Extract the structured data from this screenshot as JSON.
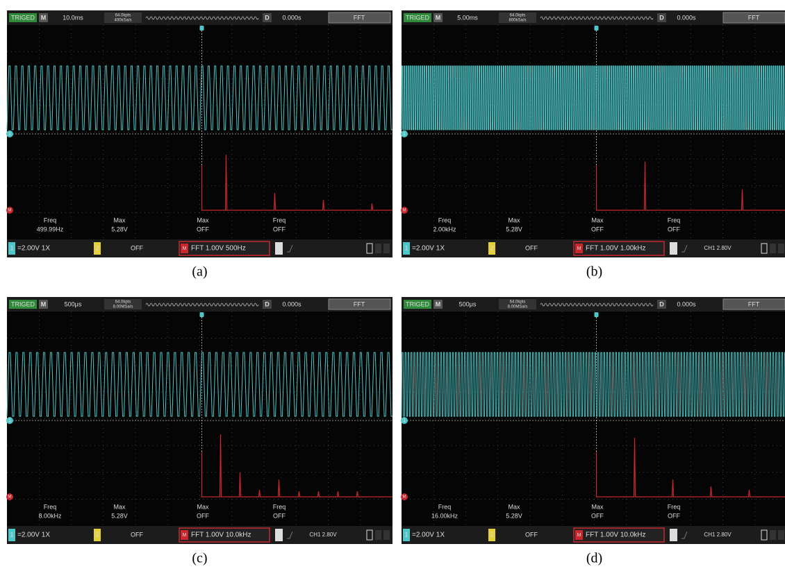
{
  "panels": [
    {
      "top": {
        "status": "TRIGED",
        "mode": "M",
        "timebase": "10.0ms",
        "depth": "64.0kpts",
        "rate": "400kSa/s",
        "delay_label": "D",
        "delay": "0.000s",
        "math": "FFT"
      },
      "markers": {
        "ch1": "1",
        "math": "M"
      },
      "measurements": [
        {
          "label": "Freq",
          "value": "499.99Hz"
        },
        {
          "label": "Max",
          "value": "5.28V"
        },
        {
          "label": "Max",
          "value": "OFF"
        },
        {
          "label": "Freq",
          "value": "OFF"
        }
      ],
      "bottom": {
        "ch1": "1",
        "ch1_setting": "=2.00V 1X",
        "ch2": "2",
        "ch2_setting": "OFF",
        "math": "M",
        "math_setting": "FFT 1.00V 500Hz",
        "trigger": "T"
      },
      "caption": "(a)"
    },
    {
      "top": {
        "status": "TRIGED",
        "mode": "M",
        "timebase": "5.00ms",
        "depth": "64.0kpts",
        "rate": "800kSa/s",
        "delay_label": "D",
        "delay": "0.000s",
        "math": "FFT"
      },
      "markers": {
        "ch1": "1",
        "math": "M"
      },
      "measurements": [
        {
          "label": "Freq",
          "value": "2.00kHz"
        },
        {
          "label": "Max",
          "value": "5.28V"
        },
        {
          "label": "Max",
          "value": "OFF"
        },
        {
          "label": "Freq",
          "value": "OFF"
        }
      ],
      "bottom": {
        "ch1": "1",
        "ch1_setting": "=2.00V 1X",
        "ch2": "2",
        "ch2_setting": "OFF",
        "math": "M",
        "math_setting": "FFT 1.00V 1.00kHz",
        "trigger": "T",
        "trigger_setting": "CH1 2.80V"
      },
      "caption": "(b)"
    },
    {
      "top": {
        "status": "TRIGED",
        "mode": "M",
        "timebase": "500μs",
        "depth": "64.0kpts",
        "rate": "8.00MSa/s",
        "delay_label": "D",
        "delay": "0.000s",
        "math": "FFT"
      },
      "markers": {
        "ch1": "1",
        "math": "M"
      },
      "measurements": [
        {
          "label": "Freq",
          "value": "8.00kHz"
        },
        {
          "label": "Max",
          "value": "5.28V"
        },
        {
          "label": "Max",
          "value": "OFF"
        },
        {
          "label": "Freq",
          "value": "OFF"
        }
      ],
      "bottom": {
        "ch1": "1",
        "ch1_setting": "=2.00V 1X",
        "ch2": "2",
        "ch2_setting": "OFF",
        "math": "M",
        "math_setting": "FFT 1.00V 10.0kHz",
        "trigger": "T",
        "trigger_setting": "CH1 2.80V"
      },
      "caption": "(c)"
    },
    {
      "top": {
        "status": "TRIGED",
        "mode": "M",
        "timebase": "500μs",
        "depth": "64.0kpts",
        "rate": "8.00MSa/s",
        "delay_label": "D",
        "delay": "0.000s",
        "math": "FFT"
      },
      "markers": {
        "ch1": "1",
        "math": "M"
      },
      "measurements": [
        {
          "label": "Freq",
          "value": "16.00kHz"
        },
        {
          "label": "Max",
          "value": "5.28V"
        },
        {
          "label": "Max",
          "value": "OFF"
        },
        {
          "label": "Freq",
          "value": "OFF"
        }
      ],
      "bottom": {
        "ch1": "1",
        "ch1_setting": "=2.00V 1X",
        "ch2": "2",
        "ch2_setting": "OFF",
        "math": "M",
        "math_setting": "FFT 1.00V 10.0kHz",
        "trigger": "T",
        "trigger_setting": "CH1 2.80V"
      },
      "caption": "(d)"
    }
  ]
}
